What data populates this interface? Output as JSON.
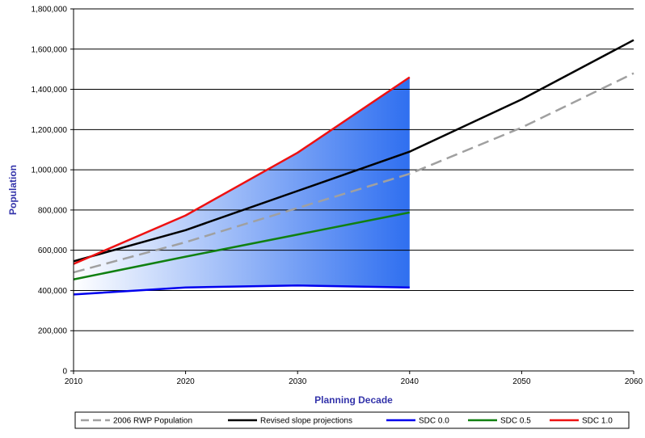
{
  "chart_data": {
    "type": "line",
    "title": "",
    "xlabel": "Planning Decade",
    "ylabel": "Population",
    "xlim": [
      2010,
      2060
    ],
    "ylim": [
      0,
      1800000
    ],
    "x_ticks": [
      2010,
      2020,
      2030,
      2040,
      2050,
      2060
    ],
    "y_ticks": [
      0,
      200000,
      400000,
      600000,
      800000,
      1000000,
      1200000,
      1400000,
      1600000,
      1800000
    ],
    "x_tick_labels": [
      "2010",
      "2020",
      "2030",
      "2040",
      "2050",
      "2060"
    ],
    "y_tick_labels": [
      "0",
      "200,000",
      "400,000",
      "600,000",
      "800,000",
      "1,000,000",
      "1,200,000",
      "1,400,000",
      "1,600,000",
      "1,800,000"
    ],
    "grid": "horizontal",
    "legend_position": "bottom",
    "shaded_band": {
      "between": [
        "SDC 0.0",
        "SDC 1.0"
      ],
      "x_range": [
        2010,
        2040
      ],
      "colors": [
        "#ffffff",
        "#2f6ff0"
      ]
    },
    "series": [
      {
        "name": "2006 RWP Population",
        "color": "#a0a0a0",
        "dash": true,
        "x": [
          2010,
          2020,
          2030,
          2040,
          2050,
          2060
        ],
        "values": [
          490000,
          640000,
          810000,
          980000,
          1210000,
          1480000
        ]
      },
      {
        "name": "Revised slope projections",
        "color": "#000000",
        "dash": false,
        "x": [
          2010,
          2020,
          2030,
          2040,
          2050,
          2060
        ],
        "values": [
          545000,
          700000,
          895000,
          1090000,
          1350000,
          1645000
        ]
      },
      {
        "name": "SDC 0.0",
        "color": "#0000ee",
        "dash": false,
        "x": [
          2010,
          2020,
          2030,
          2040
        ],
        "values": [
          380000,
          415000,
          425000,
          415000
        ]
      },
      {
        "name": "SDC 0.5",
        "color": "#108010",
        "dash": false,
        "x": [
          2010,
          2020,
          2030,
          2040
        ],
        "values": [
          455000,
          568000,
          678000,
          788000
        ]
      },
      {
        "name": "SDC 1.0",
        "color": "#ee1111",
        "dash": false,
        "x": [
          2010,
          2020,
          2030,
          2040
        ],
        "values": [
          532000,
          773000,
          1085000,
          1460000
        ]
      }
    ]
  }
}
